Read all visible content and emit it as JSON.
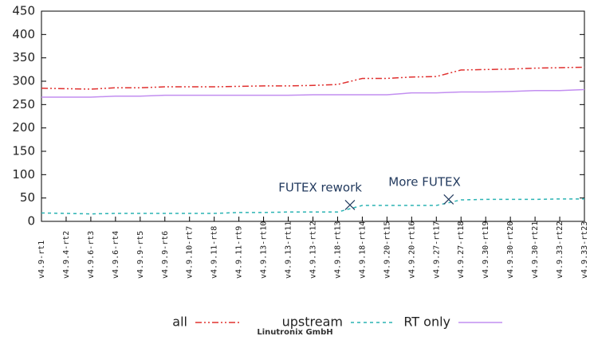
{
  "chart_data": {
    "type": "line",
    "categories": [
      "v4.9-rt1",
      "v4.9.4-rt2",
      "v4.9.6-rt3",
      "v4.9.6-rt4",
      "v4.9.9-rt5",
      "v4.9.9-rt6",
      "v4.9.10-rt7",
      "v4.9.11-rt8",
      "v4.9.11-rt9",
      "v4.9.13-rt10",
      "v4.9.13-rt11",
      "v4.9.13-rt12",
      "v4.9.18-rt13",
      "v4.9.18-rt14",
      "v4.9.20-rt15",
      "v4.9.20-rt16",
      "v4.9.27-rt17",
      "v4.9.27-rt18",
      "v4.9.30-rt19",
      "v4.9.30-rt20",
      "v4.9.30-rt21",
      "v4.9.33-rt22",
      "v4.9.33-rt23"
    ],
    "series": [
      {
        "name": "all",
        "color": "#e0302f",
        "dash": "8 3 2 3 2 3",
        "values": [
          285,
          284,
          283,
          286,
          286,
          288,
          288,
          288,
          289,
          290,
          290,
          291,
          293,
          306,
          306,
          309,
          310,
          324,
          325,
          326,
          328,
          329,
          330
        ]
      },
      {
        "name": "upstream",
        "color": "#2ab3b3",
        "dash": "4 4",
        "values": [
          18,
          17,
          16,
          17,
          17,
          17,
          17,
          17,
          19,
          19,
          20,
          20,
          20,
          34,
          34,
          34,
          34,
          46,
          47,
          47,
          47,
          48,
          48
        ]
      },
      {
        "name": "RT only",
        "color": "#c28ef0",
        "dash": "none",
        "values": [
          266,
          266,
          266,
          268,
          268,
          270,
          270,
          270,
          270,
          270,
          270,
          271,
          271,
          271,
          271,
          275,
          275,
          277,
          277,
          278,
          280,
          280,
          282
        ]
      }
    ],
    "annotations": [
      {
        "text": "FUTEX rework",
        "x": 12.5,
        "y": 35
      },
      {
        "text": "More FUTEX",
        "x": 16.5,
        "y": 47
      }
    ],
    "ylim": [
      0,
      450
    ],
    "yticks": [
      0,
      50,
      100,
      150,
      200,
      250,
      300,
      350,
      400,
      450
    ],
    "legend": "bottom",
    "footer": "Linutronix GmbH"
  }
}
